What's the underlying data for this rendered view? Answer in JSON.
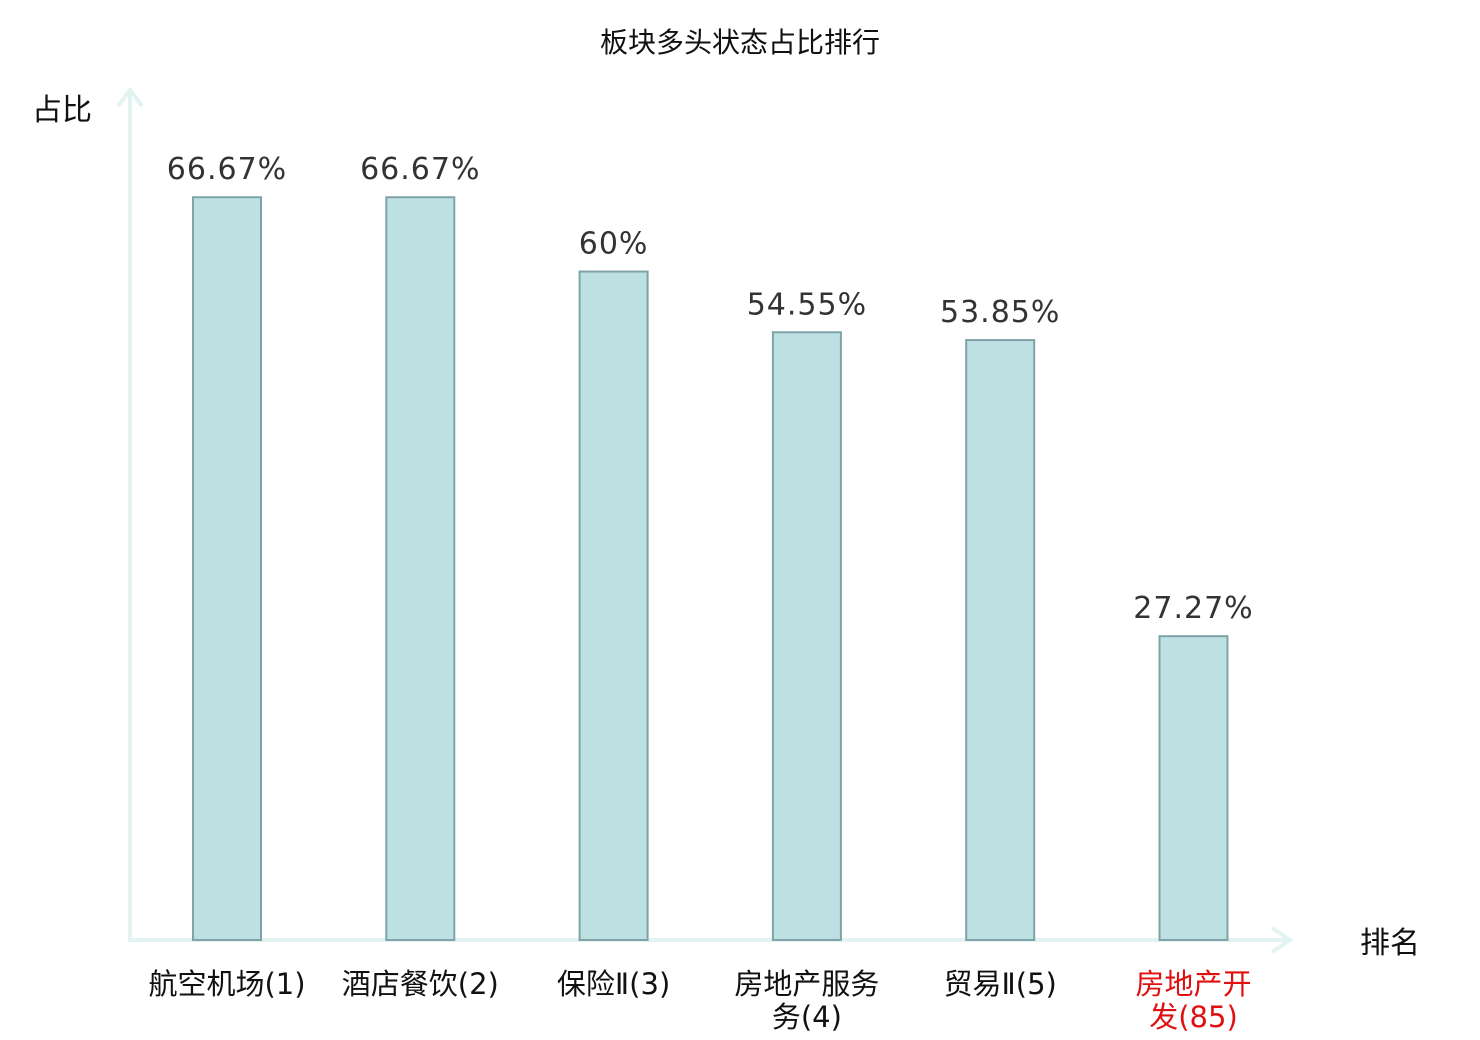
{
  "chart_data": {
    "type": "bar",
    "title": "板块多头状态占比排行",
    "ylabel": "占比",
    "xlabel": "排名",
    "categories": [
      "航空机场(1)",
      "酒店餐饮(2)",
      "保险Ⅱ(3)",
      "房地产服务(4)",
      "贸易Ⅱ(5)",
      "房地产开发(85)"
    ],
    "category_lines": [
      [
        "航空机场(1)"
      ],
      [
        "酒店餐饮(2)"
      ],
      [
        "保险Ⅱ(3)"
      ],
      [
        "房地产服务",
        "务(4)"
      ],
      [
        "贸易Ⅱ(5)"
      ],
      [
        "房地产开",
        "发(85)"
      ]
    ],
    "values": [
      66.67,
      66.67,
      60,
      54.55,
      53.85,
      27.27
    ],
    "value_labels": [
      "66.67%",
      "66.67%",
      "60%",
      "54.55%",
      "53.85%",
      "27.27%"
    ],
    "highlight_index": 5,
    "ylim": [
      0,
      74.5
    ],
    "grid": false,
    "colors": {
      "bar_fill": "#bde0e3",
      "bar_stroke": "#7fa3a6",
      "axis": "#e2f3f1",
      "label": "#111111",
      "highlight": "#e01010"
    }
  }
}
